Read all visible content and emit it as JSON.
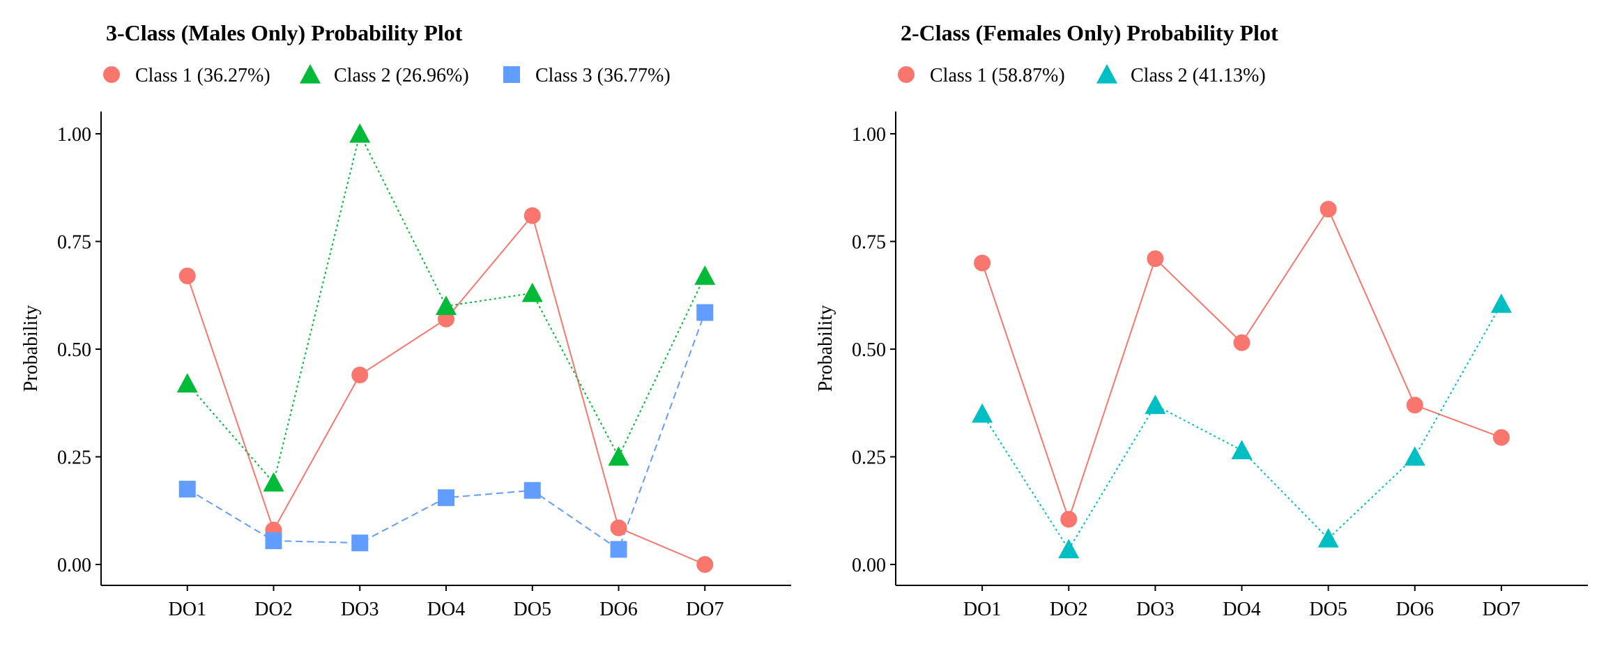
{
  "chart_data": [
    {
      "type": "line",
      "title": "3-Class (Males Only) Probability Plot",
      "xlabel": "",
      "ylabel": "Probability",
      "categories": [
        "DO1",
        "DO2",
        "DO3",
        "DO4",
        "DO5",
        "DO6",
        "DO7"
      ],
      "ylim": [
        0,
        1
      ],
      "yticks": [
        "0.00",
        "0.25",
        "0.50",
        "0.75",
        "1.00"
      ],
      "legend_position": "top-left",
      "grid": false,
      "series": [
        {
          "name": "Class 1 (36.27%)",
          "color": "#F8766D",
          "marker": "circle",
          "line": "solid",
          "values": [
            0.67,
            0.08,
            0.44,
            0.57,
            0.81,
            0.085,
            0.0
          ]
        },
        {
          "name": "Class 2 (26.96%)",
          "color": "#00BA38",
          "marker": "triangle",
          "line": "dotted",
          "values": [
            0.42,
            0.19,
            1.0,
            0.6,
            0.63,
            0.25,
            0.67
          ]
        },
        {
          "name": "Class 3 (36.77%)",
          "color": "#619CFF",
          "marker": "square",
          "line": "dashed",
          "values": [
            0.175,
            0.055,
            0.05,
            0.155,
            0.172,
            0.035,
            0.585
          ]
        }
      ]
    },
    {
      "type": "line",
      "title": "2-Class (Females Only) Probability Plot",
      "xlabel": "",
      "ylabel": "Probability",
      "categories": [
        "DO1",
        "DO2",
        "DO3",
        "DO4",
        "DO5",
        "DO6",
        "DO7"
      ],
      "ylim": [
        0,
        1
      ],
      "yticks": [
        "0.00",
        "0.25",
        "0.50",
        "0.75",
        "1.00"
      ],
      "legend_position": "top-left",
      "grid": false,
      "series": [
        {
          "name": "Class 1 (58.87%)",
          "color": "#F8766D",
          "marker": "circle",
          "line": "solid",
          "values": [
            0.7,
            0.105,
            0.71,
            0.515,
            0.825,
            0.37,
            0.295
          ]
        },
        {
          "name": "Class 2 (41.13%)",
          "color": "#00BFC4",
          "marker": "triangle",
          "line": "dotted",
          "values": [
            0.35,
            0.035,
            0.37,
            0.265,
            0.06,
            0.25,
            0.605
          ]
        }
      ]
    }
  ]
}
